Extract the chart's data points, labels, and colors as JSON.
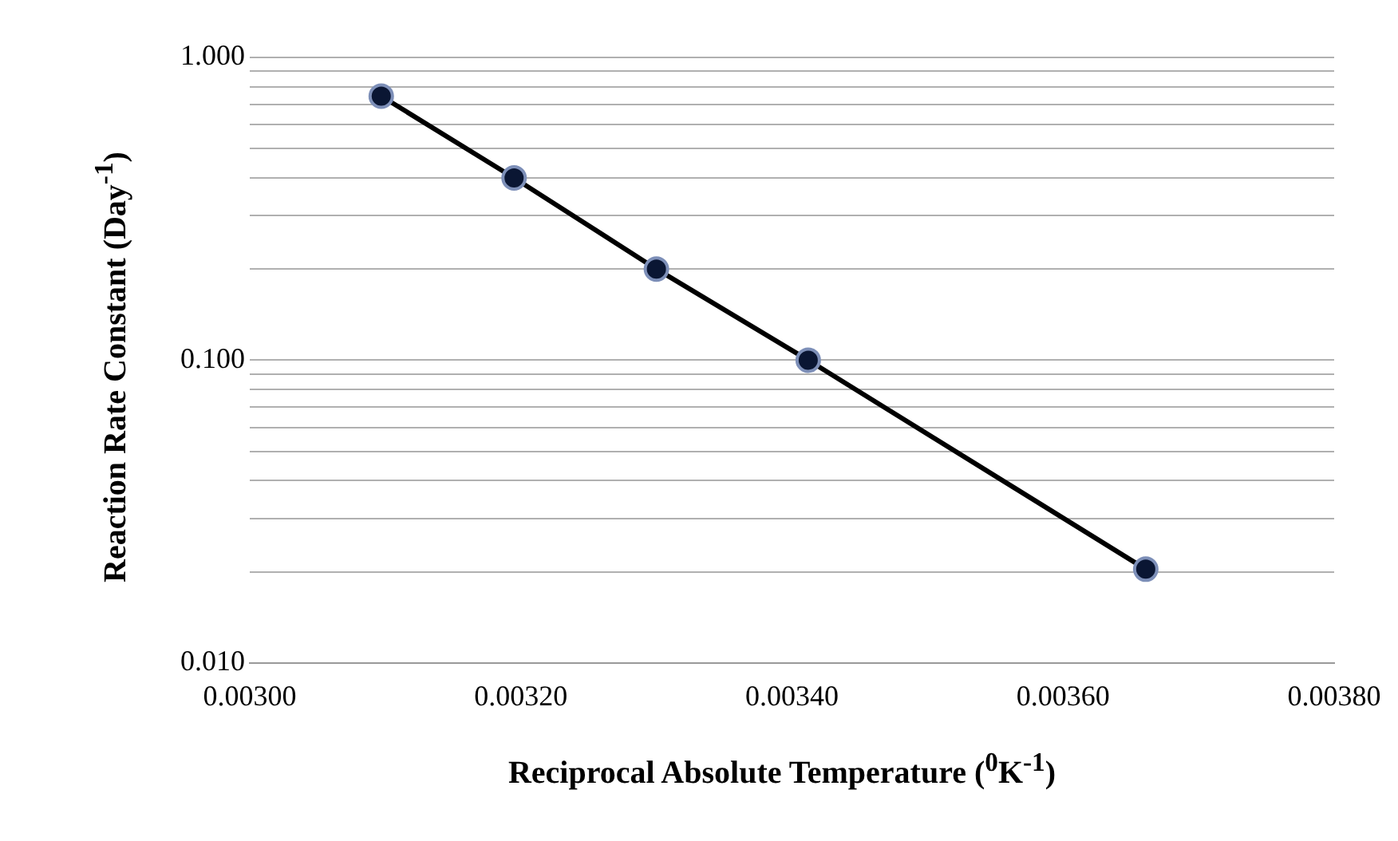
{
  "chart_data": {
    "type": "line",
    "xlabel": "Reciprocal Absolute Temperature ($^{0}$K$^{-1}$)",
    "ylabel": "Reaction Rate Constant (Day$^{-1}$)",
    "x": [
      0.003097,
      0.003195,
      0.0033,
      0.003412,
      0.003661
    ],
    "series": [
      {
        "color": "#000000",
        "values": [
          0.745,
          0.4,
          0.2,
          0.1,
          0.0204
        ]
      }
    ],
    "log": "y",
    "grid": "y",
    "marker": "circle",
    "line_style": "solid",
    "legend": false,
    "xlim": [
      0.003,
      0.0038
    ],
    "xticks": [
      {
        "value": 0.003,
        "label": "0.00300"
      },
      {
        "value": 0.0032,
        "label": "0.00320"
      },
      {
        "value": 0.0034,
        "label": "0.00340"
      },
      {
        "value": 0.0036,
        "label": "0.00360"
      },
      {
        "value": 0.0038,
        "label": "0.00380"
      }
    ],
    "ylim": [
      0.01,
      1
    ],
    "yticks": [
      {
        "value": 0.01,
        "label": "0.010"
      },
      {
        "value": 0.02,
        "label": null
      },
      {
        "value": 0.03,
        "label": null
      },
      {
        "value": 0.04,
        "label": null
      },
      {
        "value": 0.05,
        "label": null
      },
      {
        "value": 0.06,
        "label": null
      },
      {
        "value": 0.07,
        "label": null
      },
      {
        "value": 0.08,
        "label": null
      },
      {
        "value": 0.09,
        "label": null
      },
      {
        "value": 0.1,
        "label": "0.100"
      },
      {
        "value": 0.2,
        "label": null
      },
      {
        "value": 0.3,
        "label": null
      },
      {
        "value": 0.4,
        "label": null
      },
      {
        "value": 0.5,
        "label": null
      },
      {
        "value": 0.6,
        "label": null
      },
      {
        "value": 0.7,
        "label": null
      },
      {
        "value": 0.8,
        "label": null
      },
      {
        "value": 0.9,
        "label": null
      },
      {
        "value": 1,
        "label": "1.000"
      }
    ]
  }
}
